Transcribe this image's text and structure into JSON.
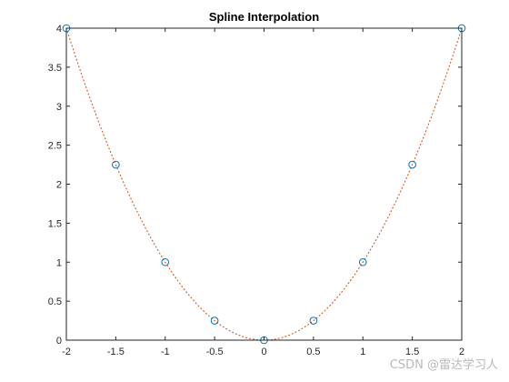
{
  "chart_data": {
    "type": "scatter",
    "title": "Spline Interpolation",
    "xlabel": "",
    "ylabel": "",
    "xlim": [
      -2,
      2
    ],
    "ylim": [
      0,
      4
    ],
    "x_ticks": [
      "-2",
      "-1.5",
      "-1",
      "-0.5",
      "0",
      "0.5",
      "1",
      "1.5",
      "2"
    ],
    "y_ticks": [
      "0",
      "0.5",
      "1",
      "1.5",
      "2",
      "2.5",
      "3",
      "3.5",
      "4"
    ],
    "grid": false,
    "legend": "none",
    "series": [
      {
        "style": "circle-markers",
        "color": "#0072bd",
        "x": [
          -2,
          -1.5,
          -1,
          -0.5,
          0,
          0.5,
          1,
          1.5,
          2
        ],
        "y": [
          4,
          2.25,
          1,
          0.25,
          0,
          0.25,
          1,
          2.25,
          4
        ]
      },
      {
        "style": "dotted-line",
        "color": "#d95319",
        "function": "y = x^2",
        "x_range": [
          -2,
          2
        ]
      }
    ]
  },
  "watermark": "CSDN @雷达学习人"
}
